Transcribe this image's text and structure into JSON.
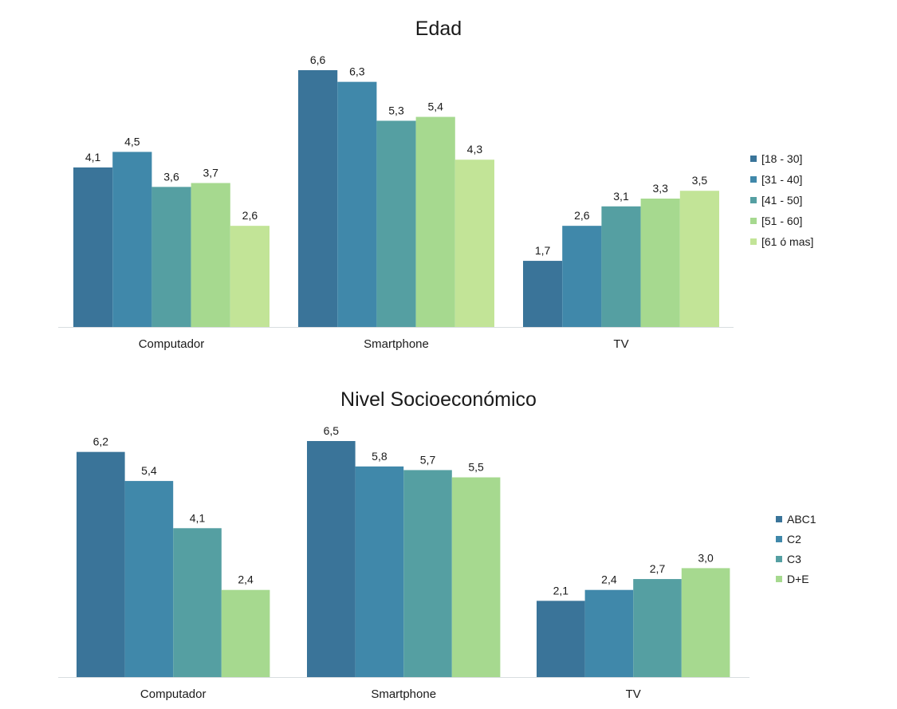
{
  "chart_data": [
    {
      "type": "bar",
      "title": "Edad",
      "xlabel": "",
      "ylabel": "",
      "categories": [
        "Computador",
        "Smartphone",
        "TV"
      ],
      "series": [
        {
          "name": "[18 - 30]",
          "values": [
            4.1,
            6.6,
            1.7
          ],
          "labels": [
            "4,1",
            "6,6",
            "1,7"
          ],
          "color": "#3a7499"
        },
        {
          "name": "[31 - 40]",
          "values": [
            4.5,
            6.3,
            2.6
          ],
          "labels": [
            "4,5",
            "6,3",
            "2,6"
          ],
          "color": "#4088aa"
        },
        {
          "name": "[41 - 50]",
          "values": [
            3.6,
            5.3,
            3.1
          ],
          "labels": [
            "3,6",
            "5,3",
            "3,1"
          ],
          "color": "#559fa2"
        },
        {
          "name": "[51 - 60]",
          "values": [
            3.7,
            5.4,
            3.3
          ],
          "labels": [
            "3,7",
            "5,4",
            "3,3"
          ],
          "color": "#a6d98f"
        },
        {
          "name": "[61 ó mas]",
          "values": [
            2.6,
            4.3,
            3.5
          ],
          "labels": [
            "2,6",
            "4,3",
            "3,5"
          ],
          "color": "#c2e497"
        }
      ],
      "ylim": [
        0,
        6.6
      ],
      "grid": false,
      "legend": "right"
    },
    {
      "type": "bar",
      "title": "Nivel Socioeconómico",
      "xlabel": "",
      "ylabel": "",
      "categories": [
        "Computador",
        "Smartphone",
        "TV"
      ],
      "series": [
        {
          "name": "ABC1",
          "values": [
            6.2,
            6.5,
            2.1
          ],
          "labels": [
            "6,2",
            "6,5",
            "2,1"
          ],
          "color": "#3a7499"
        },
        {
          "name": "C2",
          "values": [
            5.4,
            5.8,
            2.4
          ],
          "labels": [
            "5,4",
            "5,8",
            "2,4"
          ],
          "color": "#4088aa"
        },
        {
          "name": "C3",
          "values": [
            4.1,
            5.7,
            2.7
          ],
          "labels": [
            "4,1",
            "5,7",
            "2,7"
          ],
          "color": "#559fa2"
        },
        {
          "name": "D+E",
          "values": [
            2.4,
            5.5,
            3.0
          ],
          "labels": [
            "2,4",
            "5,5",
            "3,0"
          ],
          "color": "#a6d98f"
        }
      ],
      "ylim": [
        0,
        6.5
      ],
      "grid": false,
      "legend": "right"
    }
  ]
}
